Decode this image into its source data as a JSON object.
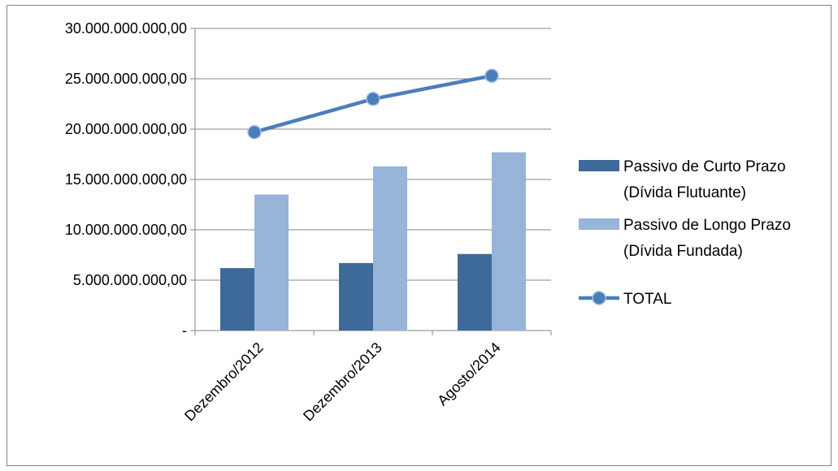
{
  "chart_data": {
    "type": "bar",
    "title": "",
    "xlabel": "",
    "ylabel": "",
    "categories": [
      "Dezembro/2012",
      "Dezembro/2013",
      "Agosto/2014"
    ],
    "ylim": [
      0,
      30000000000
    ],
    "y_ticks": [
      {
        "value": 0,
        "label": "-"
      },
      {
        "value": 5000000000,
        "label": "5.000.000.000,00"
      },
      {
        "value": 10000000000,
        "label": "10.000.000.000,00"
      },
      {
        "value": 15000000000,
        "label": "15.000.000.000,00"
      },
      {
        "value": 20000000000,
        "label": "20.000.000.000,00"
      },
      {
        "value": 25000000000,
        "label": "25.000.000.000,00"
      },
      {
        "value": 30000000000,
        "label": "30.000.000.000,00"
      }
    ],
    "grid": true,
    "legend_position": "right",
    "series": [
      {
        "name": "Passivo de Curto Prazo (Dívida Flutuante)",
        "name_lines": [
          "Passivo de Curto Prazo",
          "(Dívida Flutuante)"
        ],
        "kind": "bar",
        "color": "#3e6a9b",
        "values": [
          6200000000,
          6700000000,
          7600000000
        ]
      },
      {
        "name": "Passivo de Longo Prazo (Dívida Fundada)",
        "name_lines": [
          "Passivo de Longo Prazo",
          "(Dívida Fundada)"
        ],
        "kind": "bar",
        "color": "#97b4d9",
        "values": [
          13500000000,
          16300000000,
          17700000000
        ]
      },
      {
        "name": "TOTAL",
        "name_lines": [
          "TOTAL"
        ],
        "kind": "line",
        "color": "#4a7ebb",
        "values": [
          19700000000,
          23000000000,
          25300000000
        ]
      }
    ]
  }
}
